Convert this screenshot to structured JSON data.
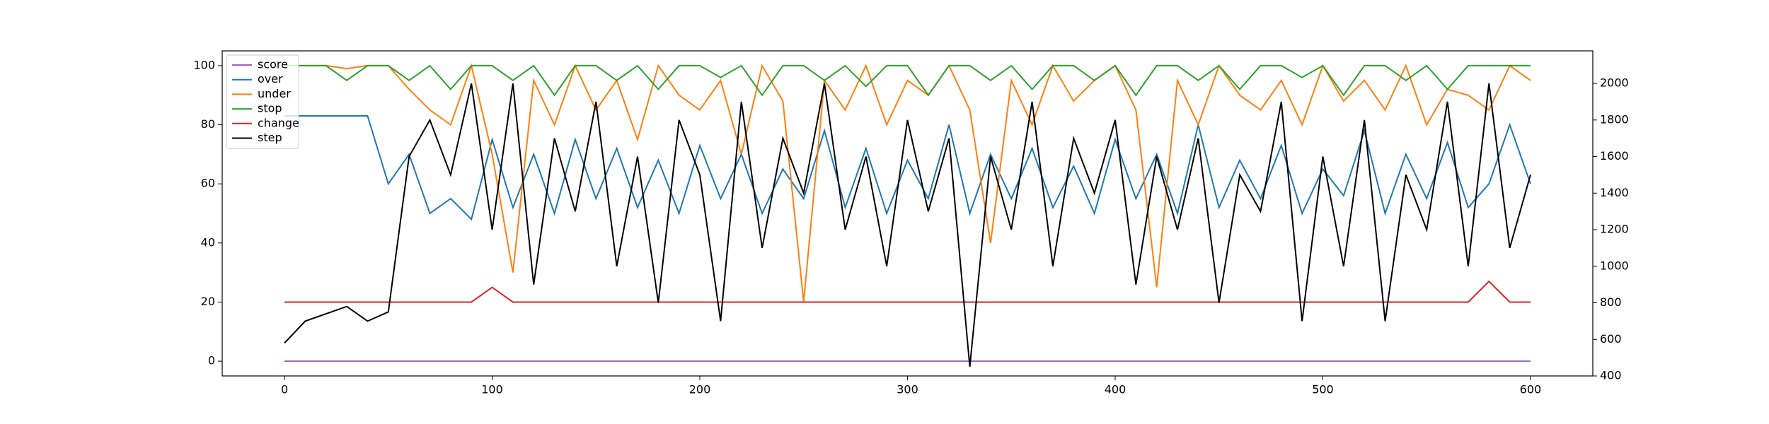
{
  "chart_data": {
    "type": "line",
    "x": [
      0,
      10,
      20,
      30,
      40,
      50,
      60,
      70,
      80,
      90,
      100,
      110,
      120,
      130,
      140,
      150,
      160,
      170,
      180,
      190,
      200,
      210,
      220,
      230,
      240,
      250,
      260,
      270,
      280,
      290,
      300,
      310,
      320,
      330,
      340,
      350,
      360,
      370,
      380,
      390,
      400,
      410,
      420,
      430,
      440,
      450,
      460,
      470,
      480,
      490,
      500,
      510,
      520,
      530,
      540,
      550,
      560,
      570,
      580,
      590,
      600
    ],
    "series": [
      {
        "name": "score",
        "color": "#9467bd",
        "values": [
          0,
          0,
          0,
          0,
          0,
          0,
          0,
          0,
          0,
          0,
          0,
          0,
          0,
          0,
          0,
          0,
          0,
          0,
          0,
          0,
          0,
          0,
          0,
          0,
          0,
          0,
          0,
          0,
          0,
          0,
          0,
          0,
          0,
          0,
          0,
          0,
          0,
          0,
          0,
          0,
          0,
          0,
          0,
          0,
          0,
          0,
          0,
          0,
          0,
          0,
          0,
          0,
          0,
          0,
          0,
          0,
          0,
          0,
          0,
          0,
          0
        ]
      },
      {
        "name": "over",
        "color": "#1f77b4",
        "values": [
          83,
          83,
          83,
          83,
          83,
          60,
          70,
          50,
          55,
          48,
          75,
          52,
          70,
          50,
          75,
          55,
          72,
          52,
          68,
          50,
          73,
          55,
          70,
          50,
          65,
          55,
          78,
          52,
          72,
          50,
          68,
          55,
          80,
          50,
          70,
          55,
          72,
          52,
          66,
          50,
          75,
          55,
          70,
          50,
          80,
          52,
          68,
          55,
          73,
          50,
          65,
          56,
          78,
          50,
          70,
          55,
          74,
          52,
          60,
          80,
          60
        ]
      },
      {
        "name": "under",
        "color": "#ff7f0e",
        "values": [
          100,
          100,
          100,
          99,
          100,
          100,
          92,
          85,
          80,
          100,
          70,
          30,
          95,
          80,
          100,
          85,
          95,
          75,
          100,
          90,
          85,
          95,
          70,
          100,
          88,
          20,
          95,
          85,
          100,
          80,
          95,
          90,
          100,
          85,
          40,
          95,
          80,
          100,
          88,
          95,
          100,
          85,
          25,
          95,
          80,
          100,
          90,
          85,
          95,
          80,
          100,
          88,
          95,
          85,
          100,
          80,
          92,
          90,
          85,
          100,
          95
        ]
      },
      {
        "name": "stop",
        "color": "#2ca02c",
        "values": [
          100,
          100,
          100,
          95,
          100,
          100,
          95,
          100,
          92,
          100,
          100,
          95,
          100,
          90,
          100,
          100,
          95,
          100,
          92,
          100,
          100,
          96,
          100,
          90,
          100,
          100,
          95,
          100,
          93,
          100,
          100,
          90,
          100,
          100,
          95,
          100,
          92,
          100,
          100,
          95,
          100,
          90,
          100,
          100,
          95,
          100,
          92,
          100,
          100,
          96,
          100,
          90,
          100,
          100,
          95,
          100,
          92,
          100,
          100,
          100,
          100
        ]
      },
      {
        "name": "change",
        "color": "#d62728",
        "values": [
          20,
          20,
          20,
          20,
          20,
          20,
          20,
          20,
          20,
          20,
          25,
          20,
          20,
          20,
          20,
          20,
          20,
          20,
          20,
          20,
          20,
          20,
          20,
          20,
          20,
          20,
          20,
          20,
          20,
          20,
          20,
          20,
          20,
          20,
          20,
          20,
          20,
          20,
          20,
          20,
          20,
          20,
          20,
          20,
          20,
          20,
          20,
          20,
          20,
          20,
          20,
          20,
          20,
          20,
          20,
          20,
          20,
          20,
          27,
          20,
          20
        ]
      },
      {
        "name": "step",
        "color": "#000000",
        "axis": "y2",
        "values": [
          580,
          700,
          740,
          780,
          700,
          750,
          1600,
          1800,
          1500,
          2000,
          1200,
          2000,
          900,
          1700,
          1300,
          1900,
          1000,
          1600,
          800,
          1800,
          1500,
          700,
          1900,
          1100,
          1700,
          1400,
          2000,
          1200,
          1600,
          1000,
          1800,
          1300,
          1700,
          450,
          1600,
          1200,
          1900,
          1000,
          1700,
          1400,
          1800,
          900,
          1600,
          1200,
          1700,
          800,
          1500,
          1300,
          1900,
          700,
          1600,
          1000,
          1800,
          700,
          1500,
          1200,
          1900,
          1000,
          2000,
          1100,
          1500
        ]
      }
    ],
    "xlim": [
      -30,
      630
    ],
    "xticks": [
      0,
      100,
      200,
      300,
      400,
      500,
      600
    ],
    "ylim": [
      -5,
      105
    ],
    "yticks": [
      0,
      20,
      40,
      60,
      80,
      100
    ],
    "y2lim": [
      400,
      2178
    ],
    "y2ticks": [
      400,
      600,
      800,
      1000,
      1200,
      1400,
      1600,
      1800,
      2000
    ],
    "legend": "upper-left"
  }
}
